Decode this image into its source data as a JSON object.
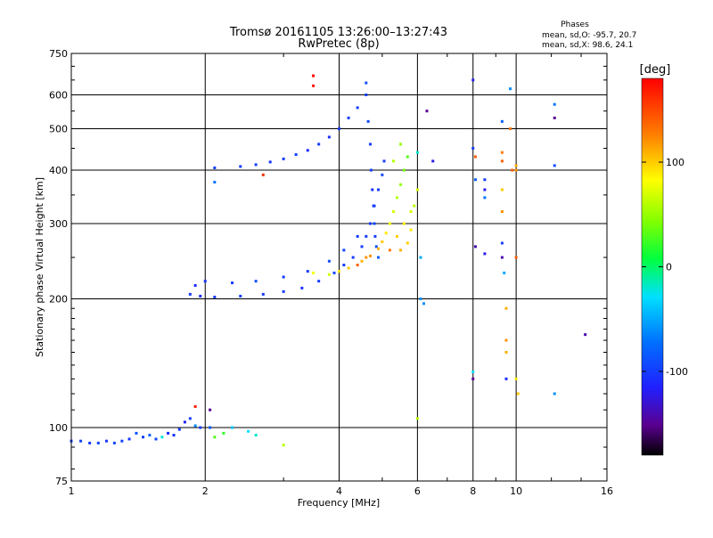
{
  "chart_data": {
    "type": "scatter",
    "title": "Tromsø 20161105 13:26:00–13:27:43",
    "subtitle": "RwPretec (8p)",
    "stats_heading": "Phases",
    "stats_lines": [
      "mean, sd,O: -95.7, 20.7",
      "mean, sd,X:  98.6, 24.1"
    ],
    "xlabel": "Frequency [MHz]",
    "ylabel": "Stationary phase Virtual Height [km]",
    "x_scale": "log",
    "y_scale": "log",
    "xlim": [
      1,
      16
    ],
    "ylim": [
      75,
      750
    ],
    "x_ticks": [
      1,
      2,
      4,
      6,
      8,
      10,
      16
    ],
    "x_tick_labels": [
      "1",
      "2",
      "4",
      "6",
      "8",
      "10",
      "16"
    ],
    "y_ticks": [
      75,
      100,
      200,
      300,
      400,
      500,
      600,
      750
    ],
    "y_tick_labels": [
      "75",
      "100",
      "200",
      "300",
      "400",
      "500",
      "600",
      "750"
    ],
    "grid": true,
    "colorbar": {
      "label": "[deg]",
      "range": [
        -180,
        180
      ],
      "ticks": [
        100,
        0,
        -100
      ],
      "tick_labels": [
        "100",
        "0",
        "-100"
      ]
    },
    "series": [
      {
        "points": [
          [
            1.0,
            93,
            -95
          ],
          [
            1.05,
            93,
            -98
          ],
          [
            1.1,
            92,
            -100
          ],
          [
            1.15,
            92,
            -97
          ],
          [
            1.2,
            93,
            -102
          ],
          [
            1.25,
            92,
            -95
          ],
          [
            1.3,
            93,
            -99
          ],
          [
            1.35,
            94,
            -104
          ],
          [
            1.4,
            97,
            -90
          ],
          [
            1.45,
            95,
            -100
          ],
          [
            1.5,
            96,
            -80
          ],
          [
            1.55,
            94,
            -95
          ],
          [
            1.6,
            95,
            -20
          ],
          [
            1.65,
            97,
            -110
          ],
          [
            1.7,
            96,
            -105
          ],
          [
            1.75,
            99,
            -100
          ],
          [
            1.8,
            103,
            -115
          ],
          [
            1.85,
            105,
            -98
          ],
          [
            1.9,
            101,
            -60
          ],
          [
            1.95,
            100,
            -100
          ],
          [
            2.05,
            100,
            -85
          ],
          [
            2.1,
            95,
            30
          ],
          [
            2.2,
            97,
            20
          ],
          [
            2.3,
            100,
            -40
          ],
          [
            2.5,
            98,
            -30
          ],
          [
            2.6,
            96,
            -20
          ],
          [
            3.0,
            91,
            60
          ],
          [
            2.1,
            405,
            -100
          ],
          [
            2.1,
            375,
            -70
          ],
          [
            2.4,
            408,
            -100
          ],
          [
            2.6,
            412,
            -100
          ],
          [
            2.8,
            418,
            -105
          ],
          [
            3.0,
            425,
            -100
          ],
          [
            3.2,
            435,
            -100
          ],
          [
            3.4,
            445,
            -110
          ],
          [
            3.6,
            460,
            -100
          ],
          [
            3.8,
            478,
            -105
          ],
          [
            4.0,
            500,
            -100
          ],
          [
            4.2,
            530,
            -100
          ],
          [
            4.4,
            560,
            -100
          ],
          [
            4.6,
            640,
            -90
          ],
          [
            4.6,
            600,
            -100
          ],
          [
            4.65,
            520,
            -95
          ],
          [
            4.7,
            460,
            -100
          ],
          [
            4.72,
            400,
            -100
          ],
          [
            4.75,
            360,
            -105
          ],
          [
            4.78,
            330,
            -100
          ],
          [
            4.8,
            300,
            -95
          ],
          [
            4.82,
            280,
            -100
          ],
          [
            4.85,
            265,
            -90
          ],
          [
            4.9,
            250,
            -80
          ],
          [
            1.85,
            205,
            -100
          ],
          [
            1.95,
            203,
            -110
          ],
          [
            2.1,
            202,
            -100
          ],
          [
            2.4,
            203,
            -100
          ],
          [
            2.7,
            205,
            -100
          ],
          [
            3.0,
            208,
            -100
          ],
          [
            3.3,
            212,
            -105
          ],
          [
            3.6,
            220,
            -100
          ],
          [
            3.9,
            230,
            -95
          ],
          [
            4.1,
            240,
            -100
          ],
          [
            4.3,
            250,
            -100
          ],
          [
            4.5,
            265,
            -100
          ],
          [
            4.6,
            280,
            -100
          ],
          [
            4.7,
            300,
            -100
          ],
          [
            4.8,
            330,
            -100
          ],
          [
            4.9,
            360,
            -100
          ],
          [
            5.0,
            390,
            -95
          ],
          [
            5.05,
            420,
            -100
          ],
          [
            1.9,
            215,
            -110
          ],
          [
            2.0,
            220,
            -105
          ],
          [
            2.3,
            218,
            -100
          ],
          [
            2.6,
            220,
            -90
          ],
          [
            3.0,
            225,
            -100
          ],
          [
            3.4,
            232,
            -100
          ],
          [
            3.8,
            245,
            -90
          ],
          [
            4.1,
            260,
            -95
          ],
          [
            4.4,
            280,
            -100
          ],
          [
            3.5,
            230,
            80
          ],
          [
            3.8,
            228,
            70
          ],
          [
            4.0,
            232,
            90
          ],
          [
            4.2,
            236,
            100
          ],
          [
            4.5,
            245,
            110
          ],
          [
            4.7,
            252,
            120
          ],
          [
            4.9,
            262,
            110
          ],
          [
            5.0,
            272,
            100
          ],
          [
            5.1,
            285,
            90
          ],
          [
            5.2,
            300,
            80
          ],
          [
            5.3,
            320,
            70
          ],
          [
            5.4,
            345,
            60
          ],
          [
            5.5,
            370,
            50
          ],
          [
            5.6,
            400,
            40
          ],
          [
            5.7,
            430,
            30
          ],
          [
            5.2,
            260,
            130
          ],
          [
            5.4,
            280,
            100
          ],
          [
            5.6,
            300,
            90
          ],
          [
            5.8,
            320,
            70
          ],
          [
            5.9,
            330,
            60
          ],
          [
            5.5,
            260,
            110
          ],
          [
            5.7,
            270,
            100
          ],
          [
            5.8,
            290,
            90
          ],
          [
            4.4,
            240,
            140
          ],
          [
            4.6,
            250,
            120
          ],
          [
            5.3,
            420,
            60
          ],
          [
            5.5,
            460,
            50
          ],
          [
            6.0,
            440,
            -20
          ],
          [
            6.0,
            360,
            70
          ],
          [
            6.1,
            250,
            -50
          ],
          [
            6.1,
            200,
            -60
          ],
          [
            6.2,
            195,
            -60
          ],
          [
            6.0,
            105,
            60
          ],
          [
            6.3,
            550,
            -150
          ],
          [
            6.5,
            420,
            -120
          ],
          [
            8.0,
            650,
            -120
          ],
          [
            8.0,
            450,
            -100
          ],
          [
            8.1,
            430,
            140
          ],
          [
            8.1,
            380,
            -80
          ],
          [
            8.1,
            265,
            -140
          ],
          [
            8.0,
            135,
            -30
          ],
          [
            8.0,
            130,
            -150
          ],
          [
            8.5,
            380,
            -100
          ],
          [
            8.5,
            360,
            -120
          ],
          [
            8.5,
            345,
            -70
          ],
          [
            8.5,
            255,
            -120
          ],
          [
            9.3,
            520,
            -80
          ],
          [
            9.3,
            440,
            130
          ],
          [
            9.3,
            420,
            140
          ],
          [
            9.3,
            360,
            100
          ],
          [
            9.3,
            320,
            120
          ],
          [
            9.3,
            270,
            -100
          ],
          [
            9.3,
            250,
            -140
          ],
          [
            9.4,
            230,
            -50
          ],
          [
            9.5,
            190,
            110
          ],
          [
            9.5,
            160,
            120
          ],
          [
            9.5,
            150,
            110
          ],
          [
            9.5,
            130,
            -110
          ],
          [
            9.7,
            620,
            -60
          ],
          [
            9.7,
            500,
            130
          ],
          [
            9.8,
            400,
            140
          ],
          [
            10.0,
            410,
            110
          ],
          [
            10.0,
            400,
            120
          ],
          [
            10.0,
            250,
            140
          ],
          [
            10.0,
            130,
            90
          ],
          [
            10.1,
            120,
            100
          ],
          [
            12.2,
            570,
            -70
          ],
          [
            12.2,
            530,
            -150
          ],
          [
            12.2,
            410,
            -90
          ],
          [
            12.2,
            120,
            -60
          ],
          [
            14.3,
            165,
            -140
          ],
          [
            3.5,
            665,
            180
          ],
          [
            3.5,
            630,
            170
          ],
          [
            2.7,
            390,
            160
          ],
          [
            1.9,
            112,
            170
          ],
          [
            2.05,
            110,
            -150
          ]
        ]
      }
    ]
  }
}
